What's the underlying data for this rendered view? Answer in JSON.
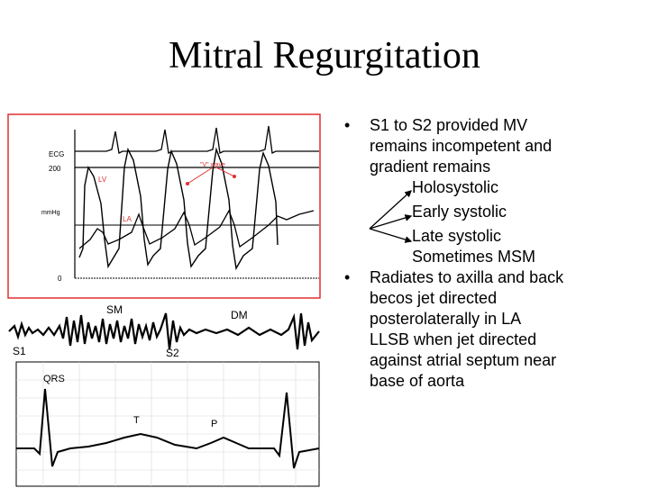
{
  "slide": {
    "title": "Mitral Regurgitation"
  },
  "figure": {
    "pressure_trace": {
      "labels": {
        "ecg": "ECG",
        "scale_top": "200",
        "units": "mmHg",
        "scale_bottom": "0",
        "lv": "LV",
        "la": "LA",
        "v_wave": "\"V\" wave"
      },
      "frame_color": "#e03030",
      "annotation_color": "#e03030"
    },
    "phonocardiogram": {
      "labels": {
        "sm": "SM",
        "dm": "DM",
        "s1": "S1",
        "s2": "S2"
      }
    },
    "ecg_strip": {
      "labels": {
        "qrs": "QRS",
        "t": "T",
        "p": "P"
      }
    }
  },
  "bullets": {
    "b1": {
      "dot": "•",
      "lines": [
        "S1 to S2 provided MV",
        "remains incompetent and",
        "gradient remains"
      ]
    },
    "subitems": [
      "Holosystolic",
      "Early systolic",
      "Late systolic",
      "Sometimes MSM"
    ],
    "b2": {
      "dot": "•",
      "lines": [
        "Radiates to axilla and back",
        "becos jet directed",
        "posterolaterally in LA"
      ]
    },
    "b2_extra": [
      "LLSB when jet directed",
      "against atrial septum near",
      "base of aorta"
    ]
  }
}
